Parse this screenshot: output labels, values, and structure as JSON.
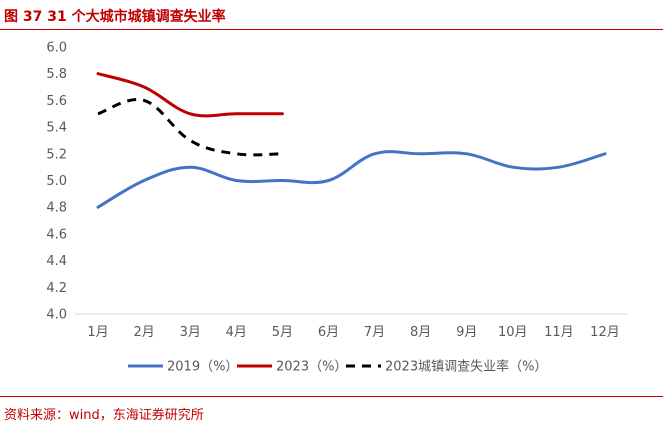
{
  "header": {
    "title": "图 37    31 个大城市城镇调查失业率"
  },
  "footer": {
    "source": "资料来源：wind，东海证券研究所"
  },
  "chart_data": {
    "type": "line",
    "categories": [
      "1月",
      "2月",
      "3月",
      "4月",
      "5月",
      "6月",
      "7月",
      "8月",
      "9月",
      "10月",
      "11月",
      "12月"
    ],
    "ylim": [
      4.0,
      6.0
    ],
    "yticks": [
      "6.0",
      "5.8",
      "5.6",
      "5.4",
      "5.2",
      "5.0",
      "4.8",
      "4.6",
      "4.4",
      "4.2",
      "4.0"
    ],
    "grid": false,
    "legend_position": "bottom",
    "series": [
      {
        "name": "2019（%）",
        "color": "#4472c4",
        "dash": "solid",
        "values": [
          4.8,
          5.0,
          5.1,
          5.0,
          5.0,
          5.0,
          5.2,
          5.2,
          5.2,
          5.1,
          5.1,
          5.2
        ]
      },
      {
        "name": "2023（%）",
        "color": "#c00000",
        "dash": "solid",
        "values": [
          5.8,
          5.7,
          5.5,
          5.5,
          5.5,
          null,
          null,
          null,
          null,
          null,
          null,
          null
        ]
      },
      {
        "name": "2023城镇调查失业率（%）",
        "color": "#000000",
        "dash": "dashed",
        "values": [
          5.5,
          5.6,
          5.3,
          5.2,
          5.2,
          null,
          null,
          null,
          null,
          null,
          null,
          null
        ]
      }
    ]
  }
}
